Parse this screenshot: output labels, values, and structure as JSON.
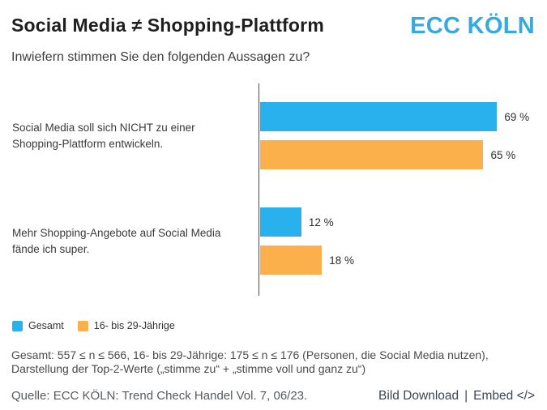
{
  "header": {
    "title": "Social Media ≠ Shopping-Plattform",
    "logo_text": "ECC KÖLN"
  },
  "question": "Inwiefern stimmen Sie den folgenden Aussagen zu?",
  "chart_data": {
    "type": "bar",
    "orientation": "horizontal",
    "title": "Social Media ≠ Shopping-Plattform",
    "subtitle": "Inwiefern stimmen Sie den folgenden Aussagen zu?",
    "categories": [
      "Social Media soll sich NICHT zu einer Shopping-Plattform entwickeln.",
      "Mehr Shopping-Angebote auf Social Media fände ich super."
    ],
    "series": [
      {
        "name": "Gesamt",
        "color": "#29B1EE",
        "values": [
          69,
          12
        ],
        "labels": [
          "69 %",
          "12 %"
        ]
      },
      {
        "name": "16- bis 29-Jährige",
        "color": "#FBB04B",
        "values": [
          65,
          18
        ],
        "labels": [
          "65 %",
          "18 %"
        ]
      }
    ],
    "unit": "%",
    "xlim": [
      0,
      80
    ],
    "grid": false,
    "legend_position": "bottom-left",
    "axis_color": "#4a4a4a"
  },
  "footnote": {
    "line1": "Gesamt: 557 ≤ n ≤ 566, 16- bis 29-Jährige: 175 ≤ n ≤ 176 (Personen, die Social Media nutzen),",
    "line2": "Darstellung der Top-2-Werte („stimme zu“ + „stimme voll und ganz zu“)"
  },
  "footer": {
    "source": "Quelle: ECC KÖLN: Trend Check Handel Vol. 7, 06/23.",
    "bild_download_label": "Bild Download",
    "separator": "|",
    "embed_label": "Embed </>"
  },
  "colors": {
    "logo_blue": "#36A9E1",
    "bar_blue": "#29B1EE",
    "bar_orange": "#FBB04B",
    "title_text": "#1e1e1e",
    "axis": "#4a4a4a"
  }
}
